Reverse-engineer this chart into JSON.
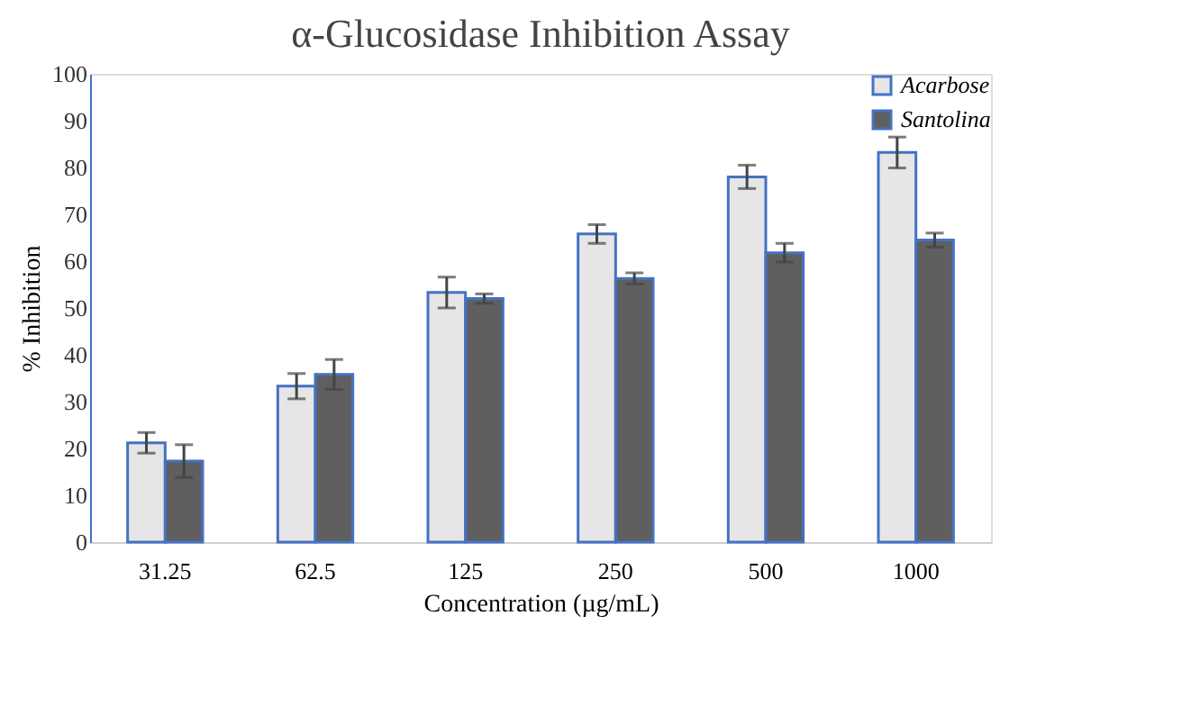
{
  "chart_data": {
    "type": "bar",
    "title": "α-Glucosidase Inhibition Assay",
    "xlabel": "Concentration (µg/mL)",
    "ylabel": "% Inhibition",
    "categories": [
      "31.25",
      "62.5",
      "125",
      "250",
      "500",
      "1000"
    ],
    "series": [
      {
        "name": "Acarbose",
        "color": "#e6e6e6",
        "values": [
          21.2,
          33.3,
          53.3,
          65.8,
          78,
          83.2
        ],
        "errors": [
          2.2,
          2.7,
          3.3,
          2,
          2.5,
          3.3
        ]
      },
      {
        "name": "Santolina",
        "color": "#5f5f5f",
        "values": [
          17.3,
          35.8,
          52,
          56.3,
          61.8,
          64.5
        ],
        "errors": [
          3.5,
          3.2,
          1,
          1.2,
          2,
          1.5
        ]
      }
    ],
    "ylim": [
      0,
      100
    ],
    "yticks": [
      0,
      10,
      20,
      30,
      40,
      50,
      60,
      70,
      80,
      90,
      100
    ],
    "grid": false,
    "legend": "top right"
  }
}
